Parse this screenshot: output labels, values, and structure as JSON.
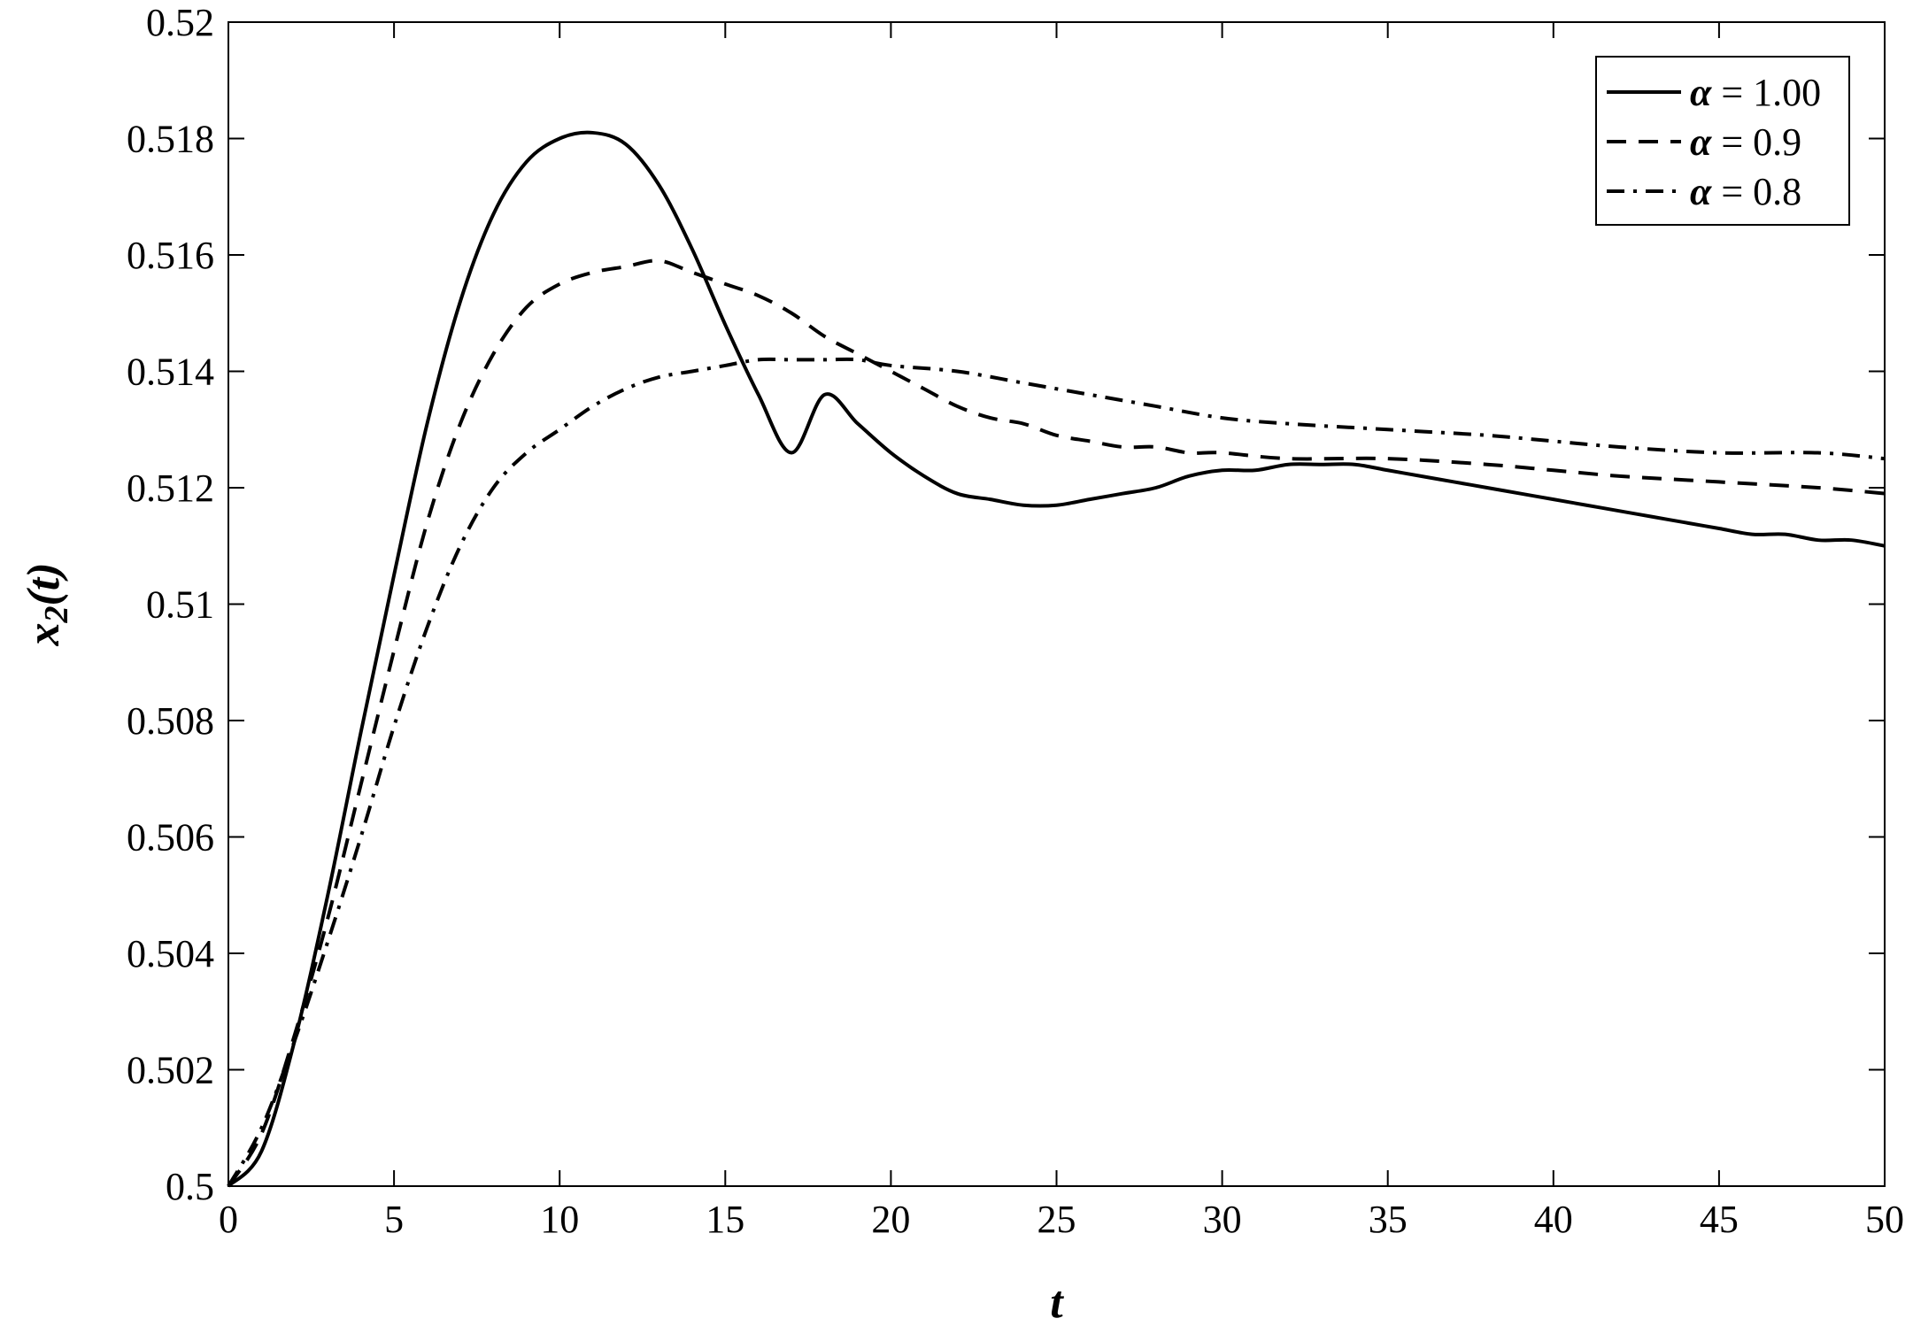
{
  "chart_data": {
    "type": "line",
    "xlabel": "t",
    "ylabel_main": "x",
    "ylabel_sub": "2",
    "ylabel_tail": "(t)",
    "xlim": [
      0,
      50
    ],
    "ylim": [
      0.5,
      0.52
    ],
    "xticks": [
      0,
      5,
      10,
      15,
      20,
      25,
      30,
      35,
      40,
      45,
      50
    ],
    "xtick_labels": [
      "0",
      "5",
      "10",
      "15",
      "20",
      "25",
      "30",
      "35",
      "40",
      "45",
      "50"
    ],
    "yticks": [
      0.5,
      0.502,
      0.504,
      0.506,
      0.508,
      0.51,
      0.512,
      0.514,
      0.516,
      0.518,
      0.52
    ],
    "ytick_labels": [
      "0.5",
      "0.502",
      "0.504",
      "0.506",
      "0.508",
      "0.51",
      "0.512",
      "0.514",
      "0.516",
      "0.518",
      "0.52"
    ],
    "grid": false,
    "legend_position": "top-right",
    "series": [
      {
        "name": "α = 1.00",
        "legend_symbol": "α",
        "legend_value": " = 1.00",
        "style": "solid",
        "x": [
          0,
          1,
          2,
          3,
          4,
          5,
          6,
          7,
          8,
          9,
          10,
          11,
          12,
          13,
          14,
          15,
          16,
          17,
          18,
          19,
          20,
          21,
          22,
          23,
          24,
          25,
          26,
          27,
          28,
          29,
          30,
          31,
          32,
          33,
          34,
          35,
          36,
          37,
          38,
          39,
          40,
          41,
          42,
          43,
          44,
          45,
          46,
          47,
          48,
          49,
          50
        ],
        "y": [
          0.5,
          0.5006,
          0.5025,
          0.505,
          0.5078,
          0.5105,
          0.5131,
          0.5152,
          0.5167,
          0.5176,
          0.518,
          0.5181,
          0.5179,
          0.5172,
          0.5161,
          0.5148,
          0.5136,
          0.5126,
          0.5136,
          0.5131,
          0.5126,
          0.5122,
          0.5119,
          0.5118,
          0.5117,
          0.5117,
          0.5118,
          0.5119,
          0.512,
          0.5122,
          0.5123,
          0.5123,
          0.5124,
          0.5124,
          0.5124,
          0.5123,
          0.5122,
          0.5121,
          0.512,
          0.5119,
          0.5118,
          0.5117,
          0.5116,
          0.5115,
          0.5114,
          0.5113,
          0.5112,
          0.5112,
          0.5111,
          0.5111,
          0.511
        ]
      },
      {
        "name": "α = 0.9",
        "legend_symbol": "α",
        "legend_value": " = 0.9",
        "style": "dashed",
        "x": [
          0,
          1,
          2,
          3,
          4,
          5,
          6,
          7,
          8,
          9,
          10,
          11,
          12,
          13,
          14,
          15,
          16,
          17,
          18,
          19,
          20,
          21,
          22,
          23,
          24,
          25,
          26,
          27,
          28,
          29,
          30,
          32,
          35,
          38,
          40,
          42,
          45,
          48,
          50
        ],
        "y": [
          0.5,
          0.5009,
          0.5026,
          0.5046,
          0.5069,
          0.5092,
          0.5114,
          0.5131,
          0.5143,
          0.5151,
          0.5155,
          0.5157,
          0.5158,
          0.5159,
          0.5157,
          0.5155,
          0.5153,
          0.515,
          0.5146,
          0.5143,
          0.514,
          0.5137,
          0.5134,
          0.5132,
          0.5131,
          0.5129,
          0.5128,
          0.5127,
          0.5127,
          0.5126,
          0.5126,
          0.5125,
          0.5125,
          0.5124,
          0.5123,
          0.5122,
          0.5121,
          0.512,
          0.5119
        ]
      },
      {
        "name": "α = 0.8",
        "legend_symbol": "α",
        "legend_value": " = 0.8",
        "style": "dashdot",
        "x": [
          0,
          1,
          2,
          3,
          4,
          5,
          6,
          7,
          8,
          9,
          10,
          11,
          12,
          13,
          14,
          15,
          16,
          17,
          18,
          19,
          20,
          22,
          24,
          26,
          28,
          30,
          32,
          35,
          38,
          40,
          42,
          45,
          48,
          50
        ],
        "y": [
          0.5,
          0.501,
          0.5025,
          0.5042,
          0.506,
          0.5079,
          0.5096,
          0.511,
          0.512,
          0.5126,
          0.513,
          0.5134,
          0.5137,
          0.5139,
          0.514,
          0.5141,
          0.5142,
          0.5142,
          0.5142,
          0.5142,
          0.5141,
          0.514,
          0.5138,
          0.5136,
          0.5134,
          0.5132,
          0.5131,
          0.513,
          0.5129,
          0.5128,
          0.5127,
          0.5126,
          0.5126,
          0.5125
        ]
      }
    ]
  }
}
